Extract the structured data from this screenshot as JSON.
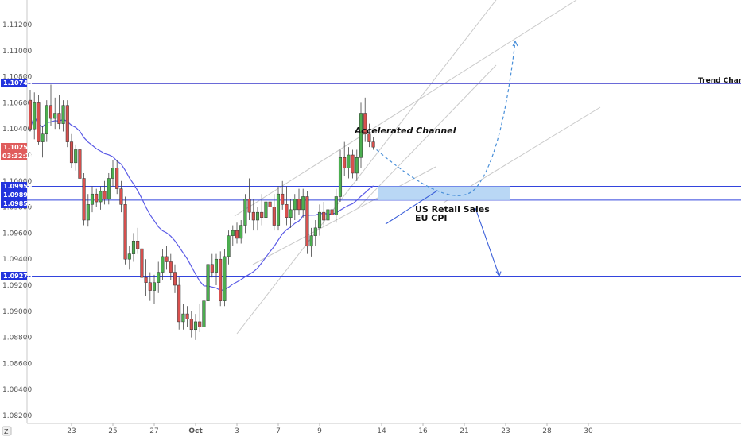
{
  "chart_data": {
    "type": "candlestick",
    "y_axis": {
      "ticks": [
        "1.11200",
        "1.11000",
        "1.10800",
        "1.10600",
        "1.10400",
        "1.10200",
        "1.10000",
        "1.09800",
        "1.09600",
        "1.09400",
        "1.09200",
        "1.09000",
        "1.08800",
        "1.08600",
        "1.08400",
        "1.08200"
      ],
      "range": [
        1.081,
        1.113
      ]
    },
    "x_axis": {
      "ticks": [
        {
          "label": "23",
          "bar": 10
        },
        {
          "label": "25",
          "bar": 20
        },
        {
          "label": "27",
          "bar": 30
        },
        {
          "label": "Oct",
          "bar": 40
        },
        {
          "label": "3",
          "bar": 50
        },
        {
          "label": "7",
          "bar": 60
        },
        {
          "label": "9",
          "bar": 70
        },
        {
          "label": "14",
          "bar": 85
        },
        {
          "label": "16",
          "bar": 95
        },
        {
          "label": "21",
          "bar": 105
        },
        {
          "label": "23",
          "bar": 115
        },
        {
          "label": "28",
          "bar": 125
        },
        {
          "label": "30",
          "bar": 135
        }
      ]
    },
    "badges": {
      "trend": "1.10746",
      "current": "1.10254",
      "countdown": "03:32:18",
      "zone_top": "1.09959",
      "zone_mid": "1.09895",
      "zone_low": "1.09853",
      "support": "1.09270"
    },
    "levels": {
      "trend": 1.10746,
      "zone_top": 1.09959,
      "zone_low": 1.09853,
      "support": 1.0927
    },
    "annotations": {
      "trend_change": "Trend Change",
      "accelerated": "Accelerated Channel",
      "news_line1": "US Retail Sales",
      "news_line2": "EU CPI"
    },
    "candles": [
      [
        1.1062,
        1.107,
        1.1038,
        1.104
      ],
      [
        1.104,
        1.1068,
        1.1032,
        1.106
      ],
      [
        1.106,
        1.1066,
        1.1028,
        1.103
      ],
      [
        1.103,
        1.1042,
        1.1018,
        1.1036
      ],
      [
        1.1036,
        1.1062,
        1.103,
        1.1058
      ],
      [
        1.1058,
        1.1074,
        1.1042,
        1.1048
      ],
      [
        1.1048,
        1.1064,
        1.104,
        1.1052
      ],
      [
        1.1052,
        1.1066,
        1.104,
        1.1044
      ],
      [
        1.1044,
        1.1062,
        1.1038,
        1.1058
      ],
      [
        1.1058,
        1.1062,
        1.1026,
        1.103
      ],
      [
        1.103,
        1.1036,
        1.101,
        1.1014
      ],
      [
        1.1014,
        1.1028,
        1.1008,
        1.1024
      ],
      [
        1.1024,
        1.103,
        1.0998,
        1.1002
      ],
      [
        1.1002,
        1.1006,
        1.0966,
        1.097
      ],
      [
        1.097,
        1.099,
        1.0965,
        1.0982
      ],
      [
        1.0982,
        1.0996,
        1.0976,
        1.099
      ],
      [
        1.099,
        1.0994,
        1.098,
        1.0984
      ],
      [
        1.0984,
        1.0996,
        1.0978,
        1.0992
      ],
      [
        1.0992,
        1.1,
        1.0982,
        1.0986
      ],
      [
        1.0986,
        1.1006,
        1.0982,
        1.1002
      ],
      [
        1.1002,
        1.1016,
        1.0996,
        1.101
      ],
      [
        1.101,
        1.1016,
        1.099,
        1.0994
      ],
      [
        1.0994,
        1.1,
        1.0976,
        1.0982
      ],
      [
        1.0982,
        1.0988,
        1.0936,
        1.094
      ],
      [
        1.094,
        1.095,
        1.0932,
        1.0944
      ],
      [
        1.0944,
        1.096,
        1.0938,
        1.0954
      ],
      [
        1.0954,
        1.0964,
        1.0944,
        1.0948
      ],
      [
        1.0948,
        1.0954,
        1.0922,
        1.0926
      ],
      [
        1.0926,
        1.094,
        1.0912,
        1.0922
      ],
      [
        1.0922,
        1.093,
        1.0908,
        1.0916
      ],
      [
        1.0916,
        1.0928,
        1.0906,
        1.0922
      ],
      [
        1.0922,
        1.0938,
        1.0914,
        1.093
      ],
      [
        1.093,
        1.0948,
        1.0924,
        1.0942
      ],
      [
        1.0942,
        1.095,
        1.0932,
        1.0938
      ],
      [
        1.0938,
        1.0944,
        1.0924,
        1.093
      ],
      [
        1.093,
        1.0936,
        1.0914,
        1.092
      ],
      [
        1.092,
        1.0926,
        1.0886,
        1.0892
      ],
      [
        1.0892,
        1.0906,
        1.0886,
        1.0898
      ],
      [
        1.0898,
        1.0904,
        1.0888,
        1.0894
      ],
      [
        1.0894,
        1.09,
        1.088,
        1.0886
      ],
      [
        1.0886,
        1.0898,
        1.0878,
        1.0892
      ],
      [
        1.0892,
        1.0906,
        1.0884,
        1.0888
      ],
      [
        1.0888,
        1.0914,
        1.0884,
        1.0908
      ],
      [
        1.0908,
        1.094,
        1.0902,
        1.0936
      ],
      [
        1.0936,
        1.0944,
        1.0926,
        1.093
      ],
      [
        1.093,
        1.0944,
        1.092,
        1.094
      ],
      [
        1.094,
        1.0946,
        1.0904,
        1.0908
      ],
      [
        1.0908,
        1.0948,
        1.0904,
        1.0942
      ],
      [
        1.0942,
        1.0962,
        1.0936,
        1.0958
      ],
      [
        1.0958,
        1.0966,
        1.095,
        1.0962
      ],
      [
        1.0962,
        1.0968,
        1.0952,
        1.0956
      ],
      [
        1.0956,
        1.097,
        1.0952,
        1.0966
      ],
      [
        1.0966,
        1.099,
        1.096,
        1.0986
      ],
      [
        1.0986,
        1.1002,
        1.097,
        1.0976
      ],
      [
        1.0976,
        1.0986,
        1.0962,
        1.097
      ],
      [
        1.097,
        1.098,
        1.0962,
        1.0976
      ],
      [
        1.0976,
        1.099,
        1.0966,
        1.0972
      ],
      [
        1.0972,
        1.099,
        1.0966,
        1.0984
      ],
      [
        1.0984,
        1.0998,
        1.0976,
        1.098
      ],
      [
        1.098,
        1.099,
        1.0962,
        1.0966
      ],
      [
        1.0966,
        1.0996,
        1.0962,
        1.099
      ],
      [
        1.099,
        1.1,
        1.0978,
        1.0982
      ],
      [
        1.0982,
        1.0996,
        1.0966,
        1.0972
      ],
      [
        1.0972,
        1.0986,
        1.0964,
        1.0978
      ],
      [
        1.0978,
        1.099,
        1.097,
        1.0986
      ],
      [
        1.0986,
        1.0994,
        1.0974,
        1.0978
      ],
      [
        1.0978,
        1.0994,
        1.0972,
        1.0988
      ],
      [
        1.0988,
        1.0992,
        1.0944,
        1.095
      ],
      [
        1.095,
        1.0964,
        1.0942,
        1.0958
      ],
      [
        1.0958,
        1.097,
        1.095,
        1.0964
      ],
      [
        1.0964,
        1.0982,
        1.0958,
        1.0976
      ],
      [
        1.0976,
        1.0984,
        1.0966,
        1.097
      ],
      [
        1.097,
        1.0984,
        1.0962,
        1.0978
      ],
      [
        1.0978,
        1.099,
        1.097,
        1.0974
      ],
      [
        1.0974,
        1.0994,
        1.0968,
        1.0988
      ],
      [
        1.0988,
        1.1024,
        1.0984,
        1.1018
      ],
      [
        1.1018,
        1.103,
        1.1004,
        1.101
      ],
      [
        1.101,
        1.1026,
        1.1002,
        1.102
      ],
      [
        1.102,
        1.1024,
        1.1002,
        1.1006
      ],
      [
        1.1006,
        1.1024,
        1.1,
        1.1018
      ],
      [
        1.1018,
        1.106,
        1.101,
        1.1052
      ],
      [
        1.1052,
        1.1064,
        1.103,
        1.1036
      ],
      [
        1.1036,
        1.1044,
        1.1026,
        1.103
      ],
      [
        1.103,
        1.1034,
        1.1024,
        1.1026
      ]
    ]
  }
}
